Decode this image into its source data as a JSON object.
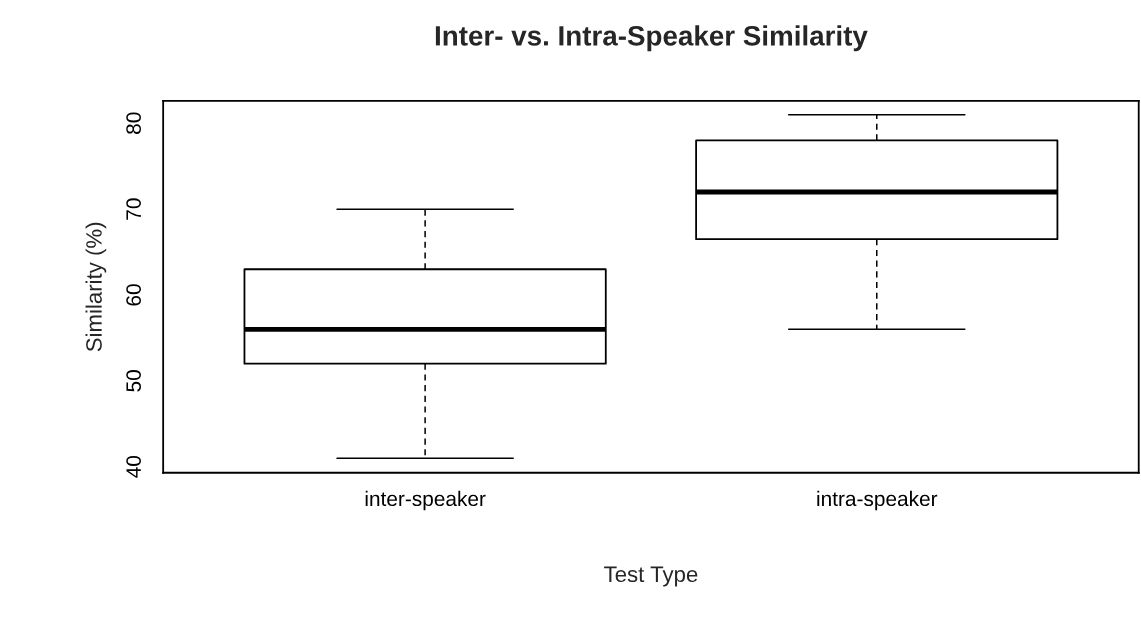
{
  "chart_data": {
    "type": "box",
    "title": "Inter- vs. Intra-Speaker Similarity",
    "xlabel": "Test Type",
    "ylabel": "Similarity (%)",
    "categories": [
      "inter-speaker",
      "intra-speaker"
    ],
    "boxes": [
      {
        "low": 41,
        "q1": 52,
        "median": 56,
        "q3": 63,
        "high": 70
      },
      {
        "low": 56,
        "q1": 66.5,
        "median": 72,
        "q3": 78,
        "high": 81
      }
    ],
    "ylim": [
      39.3,
      82.6
    ],
    "yticks": [
      40,
      50,
      60,
      70,
      80
    ],
    "grid": false,
    "legend": false
  }
}
